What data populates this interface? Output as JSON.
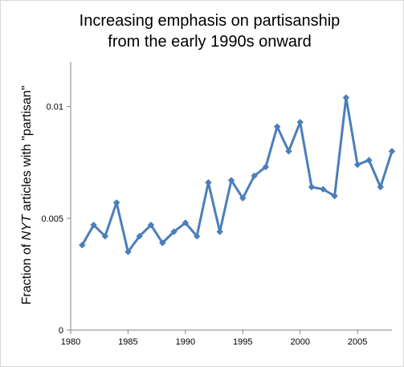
{
  "chart_data": {
    "type": "line",
    "title_lines": [
      "Increasing emphasis on partisanship",
      "from the early 1990s onward"
    ],
    "ylabel": {
      "before": "Fraction  of  ",
      "emphasis": "NYT",
      "after": "  articles  with  \"partisan\""
    },
    "xlabel": "",
    "xlim": [
      1980,
      2008
    ],
    "ylim": [
      0,
      0.012
    ],
    "xticks": [
      1980,
      1985,
      1990,
      1995,
      2000,
      2005
    ],
    "yticks": [
      0,
      0.005,
      0.01
    ],
    "ytick_labels": [
      "0",
      "0.005",
      "0.01"
    ],
    "grid": false,
    "line_color": "#4a7ebb",
    "series": [
      {
        "x": [
          1981,
          1982,
          1983,
          1984,
          1985,
          1986,
          1987,
          1988,
          1989,
          1990,
          1991,
          1992,
          1993,
          1994,
          1995,
          1996,
          1997,
          1998,
          1999,
          2000,
          2001,
          2002,
          2003,
          2004,
          2005,
          2006,
          2007,
          2008
        ],
        "y": [
          0.0038,
          0.0047,
          0.0042,
          0.0057,
          0.0035,
          0.0042,
          0.0047,
          0.0039,
          0.0044,
          0.0048,
          0.0042,
          0.0066,
          0.0044,
          0.0067,
          0.0059,
          0.0069,
          0.0073,
          0.0091,
          0.008,
          0.0093,
          0.0064,
          0.0063,
          0.006,
          0.0104,
          0.0074,
          0.0076,
          0.0064,
          0.008
        ]
      }
    ]
  }
}
